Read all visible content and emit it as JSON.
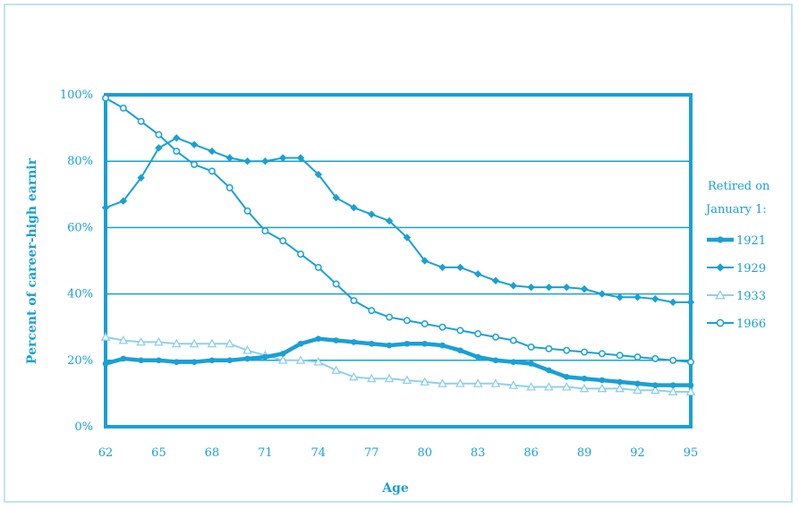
{
  "chart_data": {
    "type": "line",
    "title": "",
    "xlabel": "Age",
    "ylabel": "Percent of career-high earnir",
    "x_ticks": [
      "62",
      "65",
      "68",
      "71",
      "74",
      "77",
      "80",
      "83",
      "86",
      "89",
      "92",
      "95"
    ],
    "y_ticks": [
      "0%",
      "20%",
      "40%",
      "60%",
      "80%",
      "100%"
    ],
    "xlim": [
      62,
      95
    ],
    "ylim": [
      0,
      100
    ],
    "grid": true,
    "legend": {
      "title_line1": "Retired on",
      "title_line2": "January 1:",
      "placement": "right"
    },
    "x": [
      62,
      63,
      64,
      65,
      66,
      67,
      68,
      69,
      70,
      71,
      72,
      73,
      74,
      75,
      76,
      77,
      78,
      79,
      80,
      81,
      82,
      83,
      84,
      85,
      86,
      87,
      88,
      89,
      90,
      91,
      92,
      93,
      94,
      95
    ],
    "series": [
      {
        "name": "1921",
        "color": "#1aa0d4",
        "marker": "filled-circle",
        "bold": true,
        "values": [
          19,
          20.5,
          20,
          20,
          19.5,
          19.5,
          20,
          20,
          20.5,
          21,
          22,
          25,
          26.5,
          26,
          25.5,
          25,
          24.5,
          25,
          25,
          24.5,
          23,
          21,
          20,
          19.5,
          19,
          17,
          15,
          14.5,
          14,
          13.5,
          13,
          12.5,
          12.5,
          12.5
        ]
      },
      {
        "name": "1929",
        "color": "#1aa0d4",
        "marker": "diamond",
        "bold": false,
        "values": [
          66,
          68,
          75,
          84,
          87,
          85,
          83,
          81,
          80,
          80,
          81,
          81,
          76,
          69,
          66,
          64,
          62,
          57,
          50,
          48,
          48,
          46,
          44,
          42.5,
          42,
          42,
          42,
          41.5,
          40,
          39,
          39,
          38.5,
          37.5,
          37.5
        ]
      },
      {
        "name": "1933",
        "color": "#8fd0ea",
        "marker": "triangle",
        "bold": false,
        "values": [
          27,
          26,
          25.5,
          25.5,
          25,
          25,
          25,
          25,
          23,
          21.5,
          20,
          20,
          19.5,
          17,
          15,
          14.5,
          14.5,
          14,
          13.5,
          13,
          13,
          13,
          13,
          12.5,
          12,
          12,
          12,
          11.5,
          11.5,
          11.5,
          11,
          11,
          10.5,
          10.5
        ]
      },
      {
        "name": "1966",
        "color": "#1aa0d4",
        "marker": "open-circle",
        "bold": false,
        "values": [
          99,
          96,
          92,
          88,
          83,
          79,
          77,
          72,
          65,
          59,
          56,
          52,
          48,
          43,
          38,
          35,
          33,
          32,
          31,
          30,
          29,
          28,
          27,
          26,
          24,
          23.5,
          23,
          22.5,
          22,
          21.5,
          21,
          20.5,
          20,
          19.5
        ]
      }
    ]
  }
}
